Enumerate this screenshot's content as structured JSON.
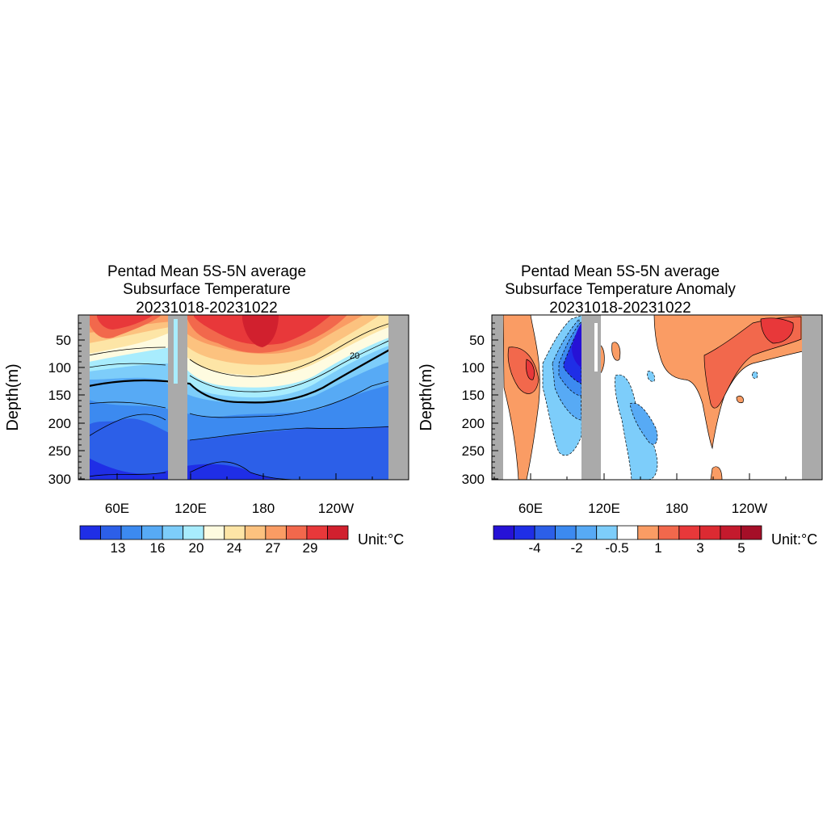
{
  "chart_data": [
    {
      "type": "heatmap",
      "title_lines": [
        "Pentad Mean 5S-5N average",
        "Subsurface Temperature",
        "20231018-20231022"
      ],
      "ylabel": "Depth(m)",
      "y_ticks": [
        50,
        100,
        150,
        200,
        250,
        300
      ],
      "x_ticks": [
        "60E",
        "120E",
        "180",
        "120W"
      ],
      "colorbar_labels": [
        "13",
        "16",
        "20",
        "24",
        "27",
        "29"
      ],
      "colorbar_colors": [
        "#1f2ee6",
        "#2c5fe8",
        "#3c8af0",
        "#57aaf5",
        "#7dcdfa",
        "#a8ecfd",
        "#fefbe0",
        "#fde5a6",
        "#fcc27f",
        "#fa9c64",
        "#f2684c",
        "#e8383a",
        "#d1202e"
      ],
      "unit": "Unit:°C",
      "contour_label": "20"
    },
    {
      "type": "heatmap",
      "title_lines": [
        "Pentad Mean 5S-5N average",
        "Subsurface Temperature Anomaly",
        "20231018-20231022"
      ],
      "ylabel": "Depth(m)",
      "y_ticks": [
        50,
        100,
        150,
        200,
        250,
        300
      ],
      "x_ticks": [
        "60E",
        "120E",
        "180",
        "120W"
      ],
      "colorbar_labels": [
        "-4",
        "-2",
        "-0.5",
        "1",
        "3",
        "5"
      ],
      "colorbar_colors": [
        "#2612d6",
        "#1f2ee6",
        "#2c5fe8",
        "#3c8af0",
        "#57aaf5",
        "#7dcdfa",
        "#ffffff",
        "#fa9c64",
        "#f2684c",
        "#e8383a",
        "#dc2a32",
        "#c41a2d",
        "#a50f28"
      ],
      "unit": "Unit:°C"
    }
  ]
}
